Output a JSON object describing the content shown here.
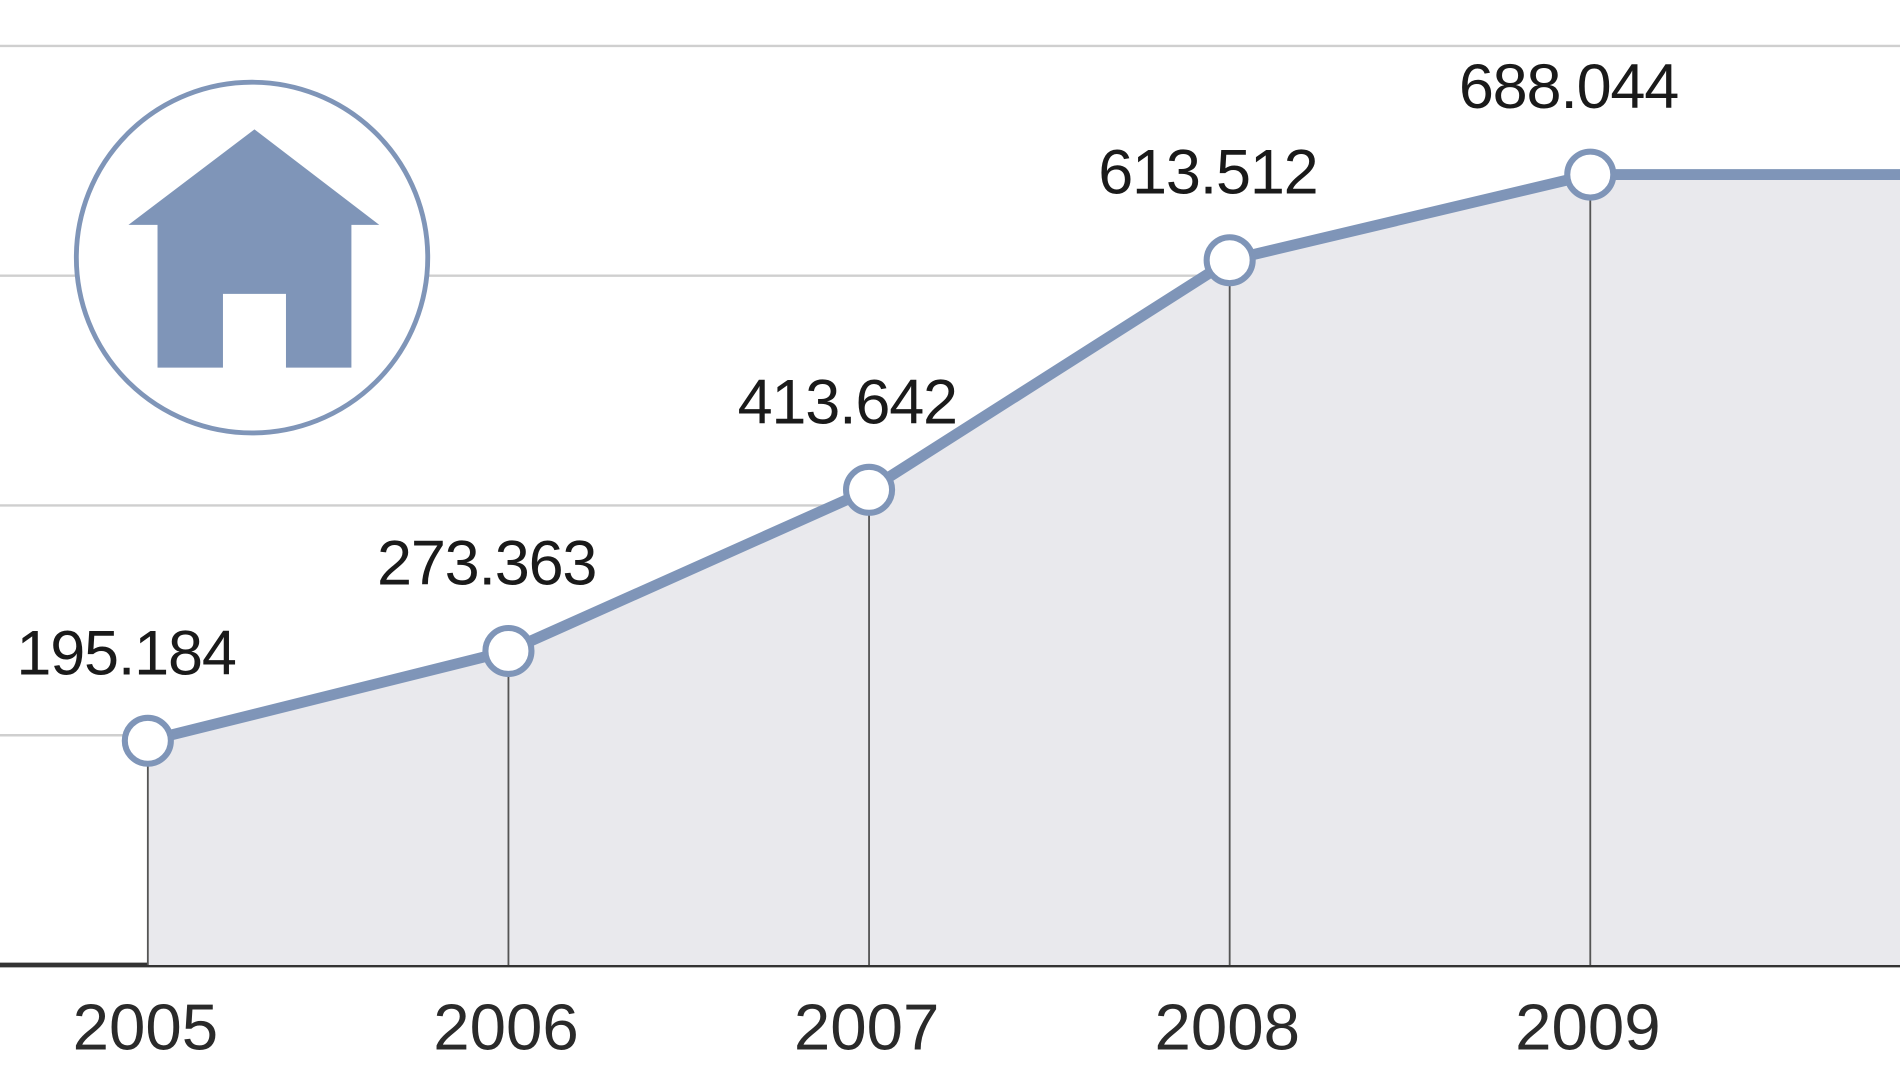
{
  "chart_data": {
    "type": "line",
    "categories": [
      "2005",
      "2006",
      "2007",
      "2008",
      "2009",
      null
    ],
    "series": [
      {
        "color": "#7f95b8",
        "values": [
          195184,
          273363,
          413642,
          613512,
          688044,
          688000
        ],
        "value_labels": [
          "195.184",
          "273.363",
          "413.642",
          "613.512",
          "688.044",
          null
        ]
      }
    ],
    "ylim": [
      0,
      840000
    ],
    "yticks": [
      0,
      200000,
      400000,
      600000,
      800000
    ],
    "grid": true
  }
}
